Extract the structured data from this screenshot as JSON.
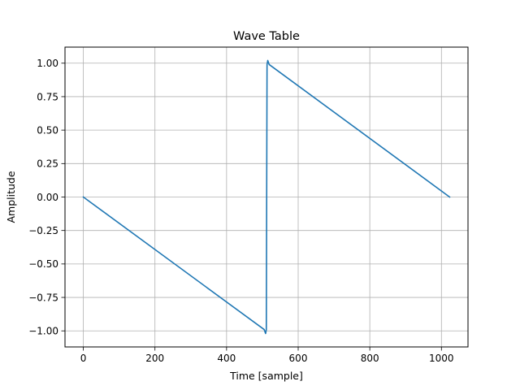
{
  "chart_data": {
    "type": "line",
    "title": "Wave Table",
    "xlabel": "Time [sample]",
    "ylabel": "Amplitude",
    "xlim": [
      -51.2,
      1074.2
    ],
    "ylim": [
      -1.12,
      1.12
    ],
    "xticks": [
      0,
      200,
      400,
      600,
      800,
      1000
    ],
    "xtick_labels": [
      "0",
      "200",
      "400",
      "600",
      "800",
      "1000"
    ],
    "yticks": [
      -1.0,
      -0.75,
      -0.5,
      -0.25,
      0.0,
      0.25,
      0.5,
      0.75,
      1.0
    ],
    "ytick_labels": [
      "−1.00",
      "−0.75",
      "−0.50",
      "−0.25",
      "0.00",
      "0.25",
      "0.50",
      "0.75",
      "1.00"
    ],
    "grid": true,
    "series": [
      {
        "color": "#1f77b4",
        "x": [
          0,
          505,
          509,
          511,
          512,
          513,
          515,
          519,
          1023
        ],
        "y": [
          0.0,
          -0.99,
          -1.02,
          -0.99,
          0.0,
          0.99,
          1.02,
          0.99,
          0.0
        ]
      }
    ]
  }
}
